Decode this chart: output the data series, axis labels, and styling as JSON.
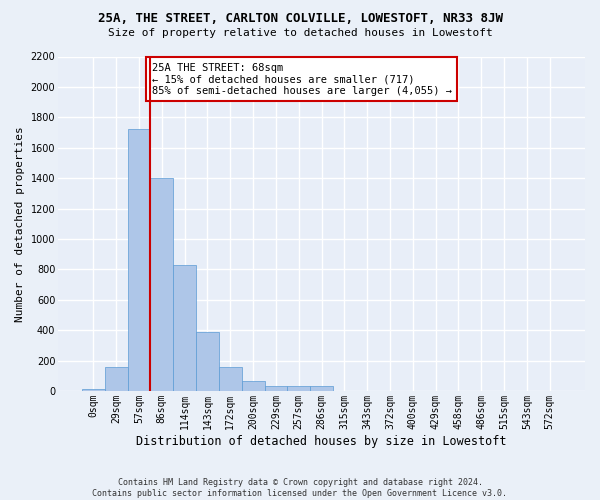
{
  "title": "25A, THE STREET, CARLTON COLVILLE, LOWESTOFT, NR33 8JW",
  "subtitle": "Size of property relative to detached houses in Lowestoft",
  "xlabel": "Distribution of detached houses by size in Lowestoft",
  "ylabel": "Number of detached properties",
  "footer_line1": "Contains HM Land Registry data © Crown copyright and database right 2024.",
  "footer_line2": "Contains public sector information licensed under the Open Government Licence v3.0.",
  "annotation_line1": "25A THE STREET: 68sqm",
  "annotation_line2": "← 15% of detached houses are smaller (717)",
  "annotation_line3": "85% of semi-detached houses are larger (4,055) →",
  "bar_labels": [
    "0sqm",
    "29sqm",
    "57sqm",
    "86sqm",
    "114sqm",
    "143sqm",
    "172sqm",
    "200sqm",
    "229sqm",
    "257sqm",
    "286sqm",
    "315sqm",
    "343sqm",
    "372sqm",
    "400sqm",
    "429sqm",
    "458sqm",
    "486sqm",
    "515sqm",
    "543sqm",
    "572sqm"
  ],
  "bar_values": [
    15,
    155,
    1720,
    1400,
    830,
    390,
    160,
    65,
    35,
    30,
    30,
    0,
    0,
    0,
    0,
    0,
    0,
    0,
    0,
    0,
    0
  ],
  "bar_color": "#aec6e8",
  "bar_edge_color": "#5b9bd5",
  "vline_color": "#cc0000",
  "vline_x": 2.5,
  "ylim": [
    0,
    2200
  ],
  "yticks": [
    0,
    200,
    400,
    600,
    800,
    1000,
    1200,
    1400,
    1600,
    1800,
    2000,
    2200
  ],
  "fig_bg_color": "#eaf0f8",
  "bg_color": "#e8eef8",
  "grid_color": "#ffffff",
  "annotation_box_color": "#cc0000",
  "annotation_box_bg": "#ffffff",
  "title_fontsize": 9,
  "subtitle_fontsize": 8,
  "ylabel_fontsize": 8,
  "xlabel_fontsize": 8.5,
  "tick_fontsize": 7,
  "footer_fontsize": 6,
  "annotation_fontsize": 7.5
}
